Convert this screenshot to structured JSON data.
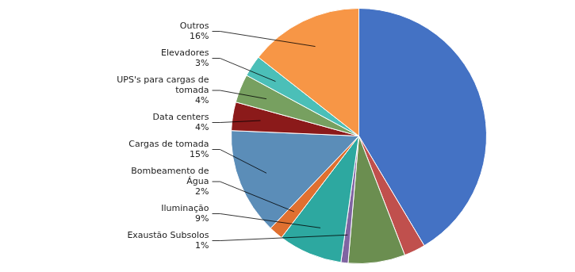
{
  "chart_data": {
    "type": "pie",
    "categories": [
      null,
      null,
      null,
      "Exaustão Subsolos",
      "Iluminação",
      "Bombeamento de\nÁgua",
      "Cargas de tomada",
      "Data centers",
      "UPS's para cargas de\ntomada",
      "Elevadores",
      "Outros"
    ],
    "values": [
      46,
      3,
      8,
      1,
      9,
      2,
      15,
      4,
      4,
      3,
      16
    ],
    "value_labels": [
      null,
      null,
      null,
      "1%",
      "9%",
      "2%",
      "15%",
      "4%",
      "4%",
      "3%",
      "16%"
    ],
    "colors": [
      "#4472C4",
      "#C0504D",
      "#6B8E50",
      "#8064A2",
      "#2DA8A0",
      "#E07030",
      "#5B8DB8",
      "#8B1A1A",
      "#77A060",
      "#4BBFB8",
      "#F79646"
    ],
    "data_labels": true
  }
}
